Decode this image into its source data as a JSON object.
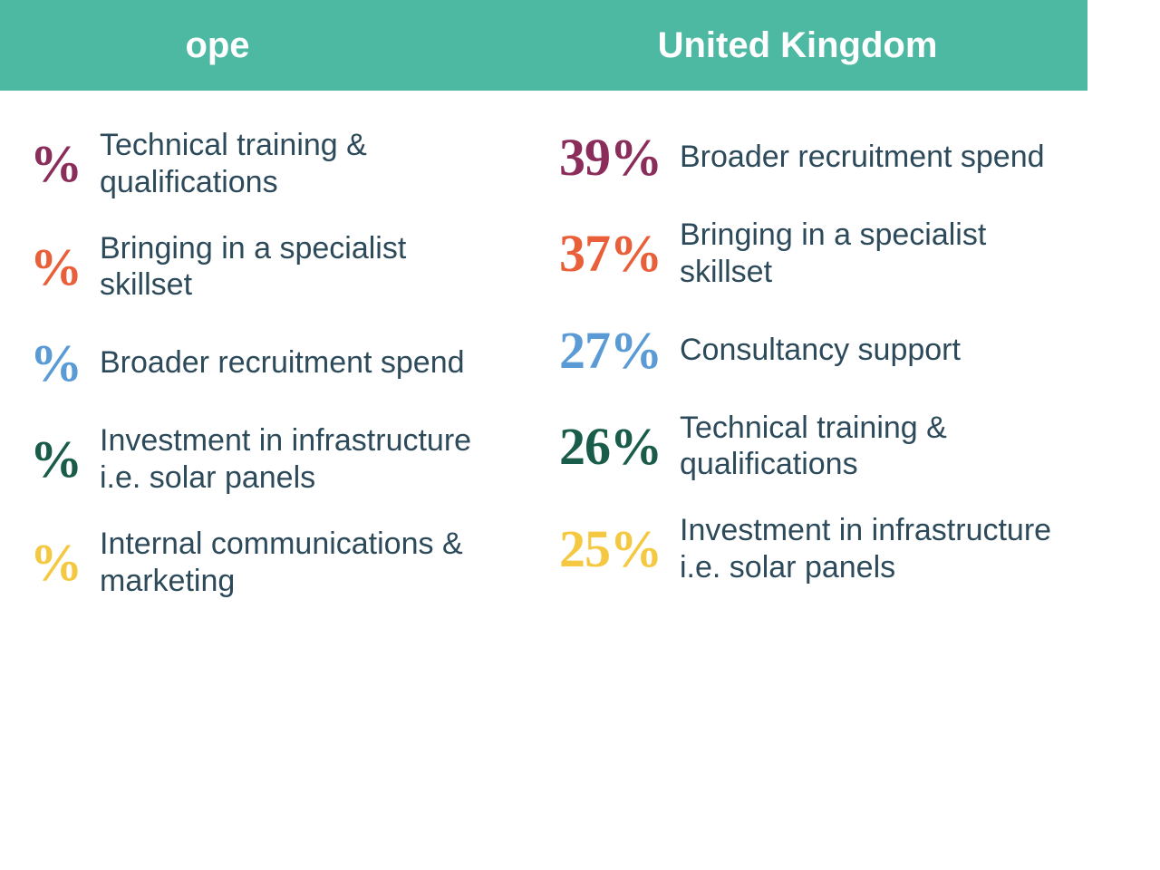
{
  "type": "infographic",
  "background_color": "#ffffff",
  "header_background": "#4db9a2",
  "header_text_color": "#ffffff",
  "header_fontsize": 40,
  "description_color": "#2d4a5a",
  "description_fontsize": 34,
  "percentage_fontsize": 58,
  "percentage_font_family": "Georgia, serif",
  "columns": [
    {
      "title": "ope",
      "items": [
        {
          "percentage": "%",
          "description": "Technical training & qualifications",
          "color": "#8b2d5a"
        },
        {
          "percentage": "%",
          "description": "Bringing in a specialist skillset",
          "color": "#e85f3a"
        },
        {
          "percentage": "%",
          "description": "Broader recruitment spend",
          "color": "#5b9bd5"
        },
        {
          "percentage": "%",
          "description": "Investment in infrastructure i.e. solar panels",
          "color": "#1a5c4a"
        },
        {
          "percentage": "%",
          "description": "Internal communications & marketing",
          "color": "#f5c842"
        }
      ]
    },
    {
      "title": "United Kingdom",
      "items": [
        {
          "percentage": "39%",
          "description": "Broader recruitment spend",
          "color": "#8b2d5a"
        },
        {
          "percentage": "37%",
          "description": "Bringing in a specialist skillset",
          "color": "#e85f3a"
        },
        {
          "percentage": "27%",
          "description": "Consultancy support",
          "color": "#5b9bd5"
        },
        {
          "percentage": "26%",
          "description": "Technical training & qualifications",
          "color": "#1a5c4a"
        },
        {
          "percentage": "25%",
          "description": "Investment in infrastructure i.e. solar panels",
          "color": "#f5c842"
        }
      ]
    }
  ]
}
